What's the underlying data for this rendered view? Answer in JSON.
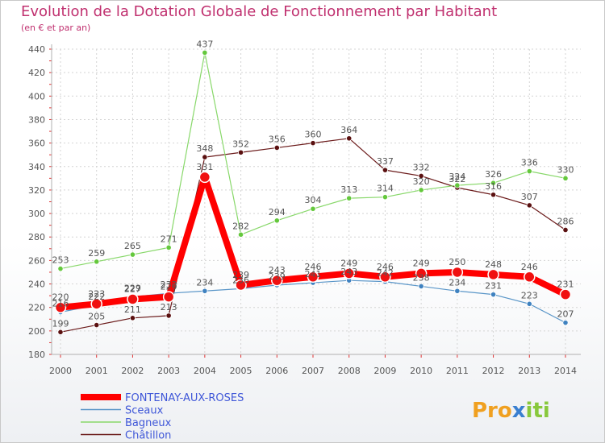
{
  "chart_data": {
    "type": "line",
    "title": "Evolution de la Dotation Globale de Fonctionnement par Habitant",
    "subtitle": "(en € et par an)",
    "xlabel": "",
    "ylabel": "",
    "x": [
      2000,
      2001,
      2002,
      2003,
      2004,
      2005,
      2006,
      2007,
      2008,
      2009,
      2010,
      2011,
      2012,
      2013,
      2014
    ],
    "ylim": [
      180,
      440
    ],
    "yticks": [
      180,
      200,
      220,
      240,
      260,
      280,
      300,
      320,
      340,
      360,
      380,
      400,
      420,
      440
    ],
    "grid": true,
    "legend_position": "bottom-left",
    "series": [
      {
        "name": "Châtillon",
        "color": "#6b1a1a",
        "marker": "#5a1010",
        "width": 1.2,
        "radius": 3.2,
        "values": [
          199,
          205,
          211,
          213,
          348,
          352,
          356,
          360,
          364,
          337,
          332,
          322,
          316,
          307,
          286
        ],
        "labels": [
          "199",
          "205",
          "211",
          "213",
          "348",
          "352",
          "356",
          "360",
          "364",
          "337",
          "332",
          "322",
          "316",
          "307",
          "286"
        ]
      },
      {
        "name": "Bagneux",
        "color": "#88d86a",
        "marker": "#64c83c",
        "width": 1.2,
        "radius": 3.2,
        "values": [
          253,
          259,
          265,
          271,
          437,
          282,
          294,
          304,
          313,
          314,
          320,
          324,
          326,
          336,
          330
        ],
        "labels": [
          "253",
          "259",
          "265",
          "271",
          "437",
          "282",
          "294",
          "304",
          "313",
          "314",
          "320",
          "324",
          "326",
          "336",
          "330"
        ]
      },
      {
        "name": "Sceaux",
        "color": "#5a96c8",
        "marker": "#3f82c0",
        "width": 1.2,
        "radius": 3.2,
        "values": [
          216,
          222,
          229,
          232,
          234,
          236,
          239,
          241,
          243,
          242,
          238,
          234,
          231,
          223,
          207
        ],
        "labels": [
          "216",
          "222",
          "229",
          "232",
          "234",
          "236",
          "239",
          "241",
          "243",
          "242",
          "238",
          "234",
          "231",
          "223",
          "207"
        ]
      },
      {
        "name": "FONTENAY-AUX-ROSES",
        "color": "#ff0000",
        "marker": "#f01010",
        "width": 8,
        "radius": 6.5,
        "values": [
          220,
          223,
          227,
          229,
          331,
          239,
          243,
          246,
          249,
          246,
          249,
          250,
          248,
          246,
          231
        ],
        "labels": [
          "220",
          "223",
          "227",
          "229",
          "331",
          "239",
          "243",
          "246",
          "249",
          "246",
          "249",
          "250",
          "248",
          "246",
          "231"
        ]
      }
    ],
    "legend": [
      "FONTENAY-AUX-ROSES",
      "Sceaux",
      "Bagneux",
      "Châtillon"
    ]
  },
  "logo": {
    "text_prefix": "Pro",
    "text_x": "x",
    "text_suffix": "iti"
  }
}
